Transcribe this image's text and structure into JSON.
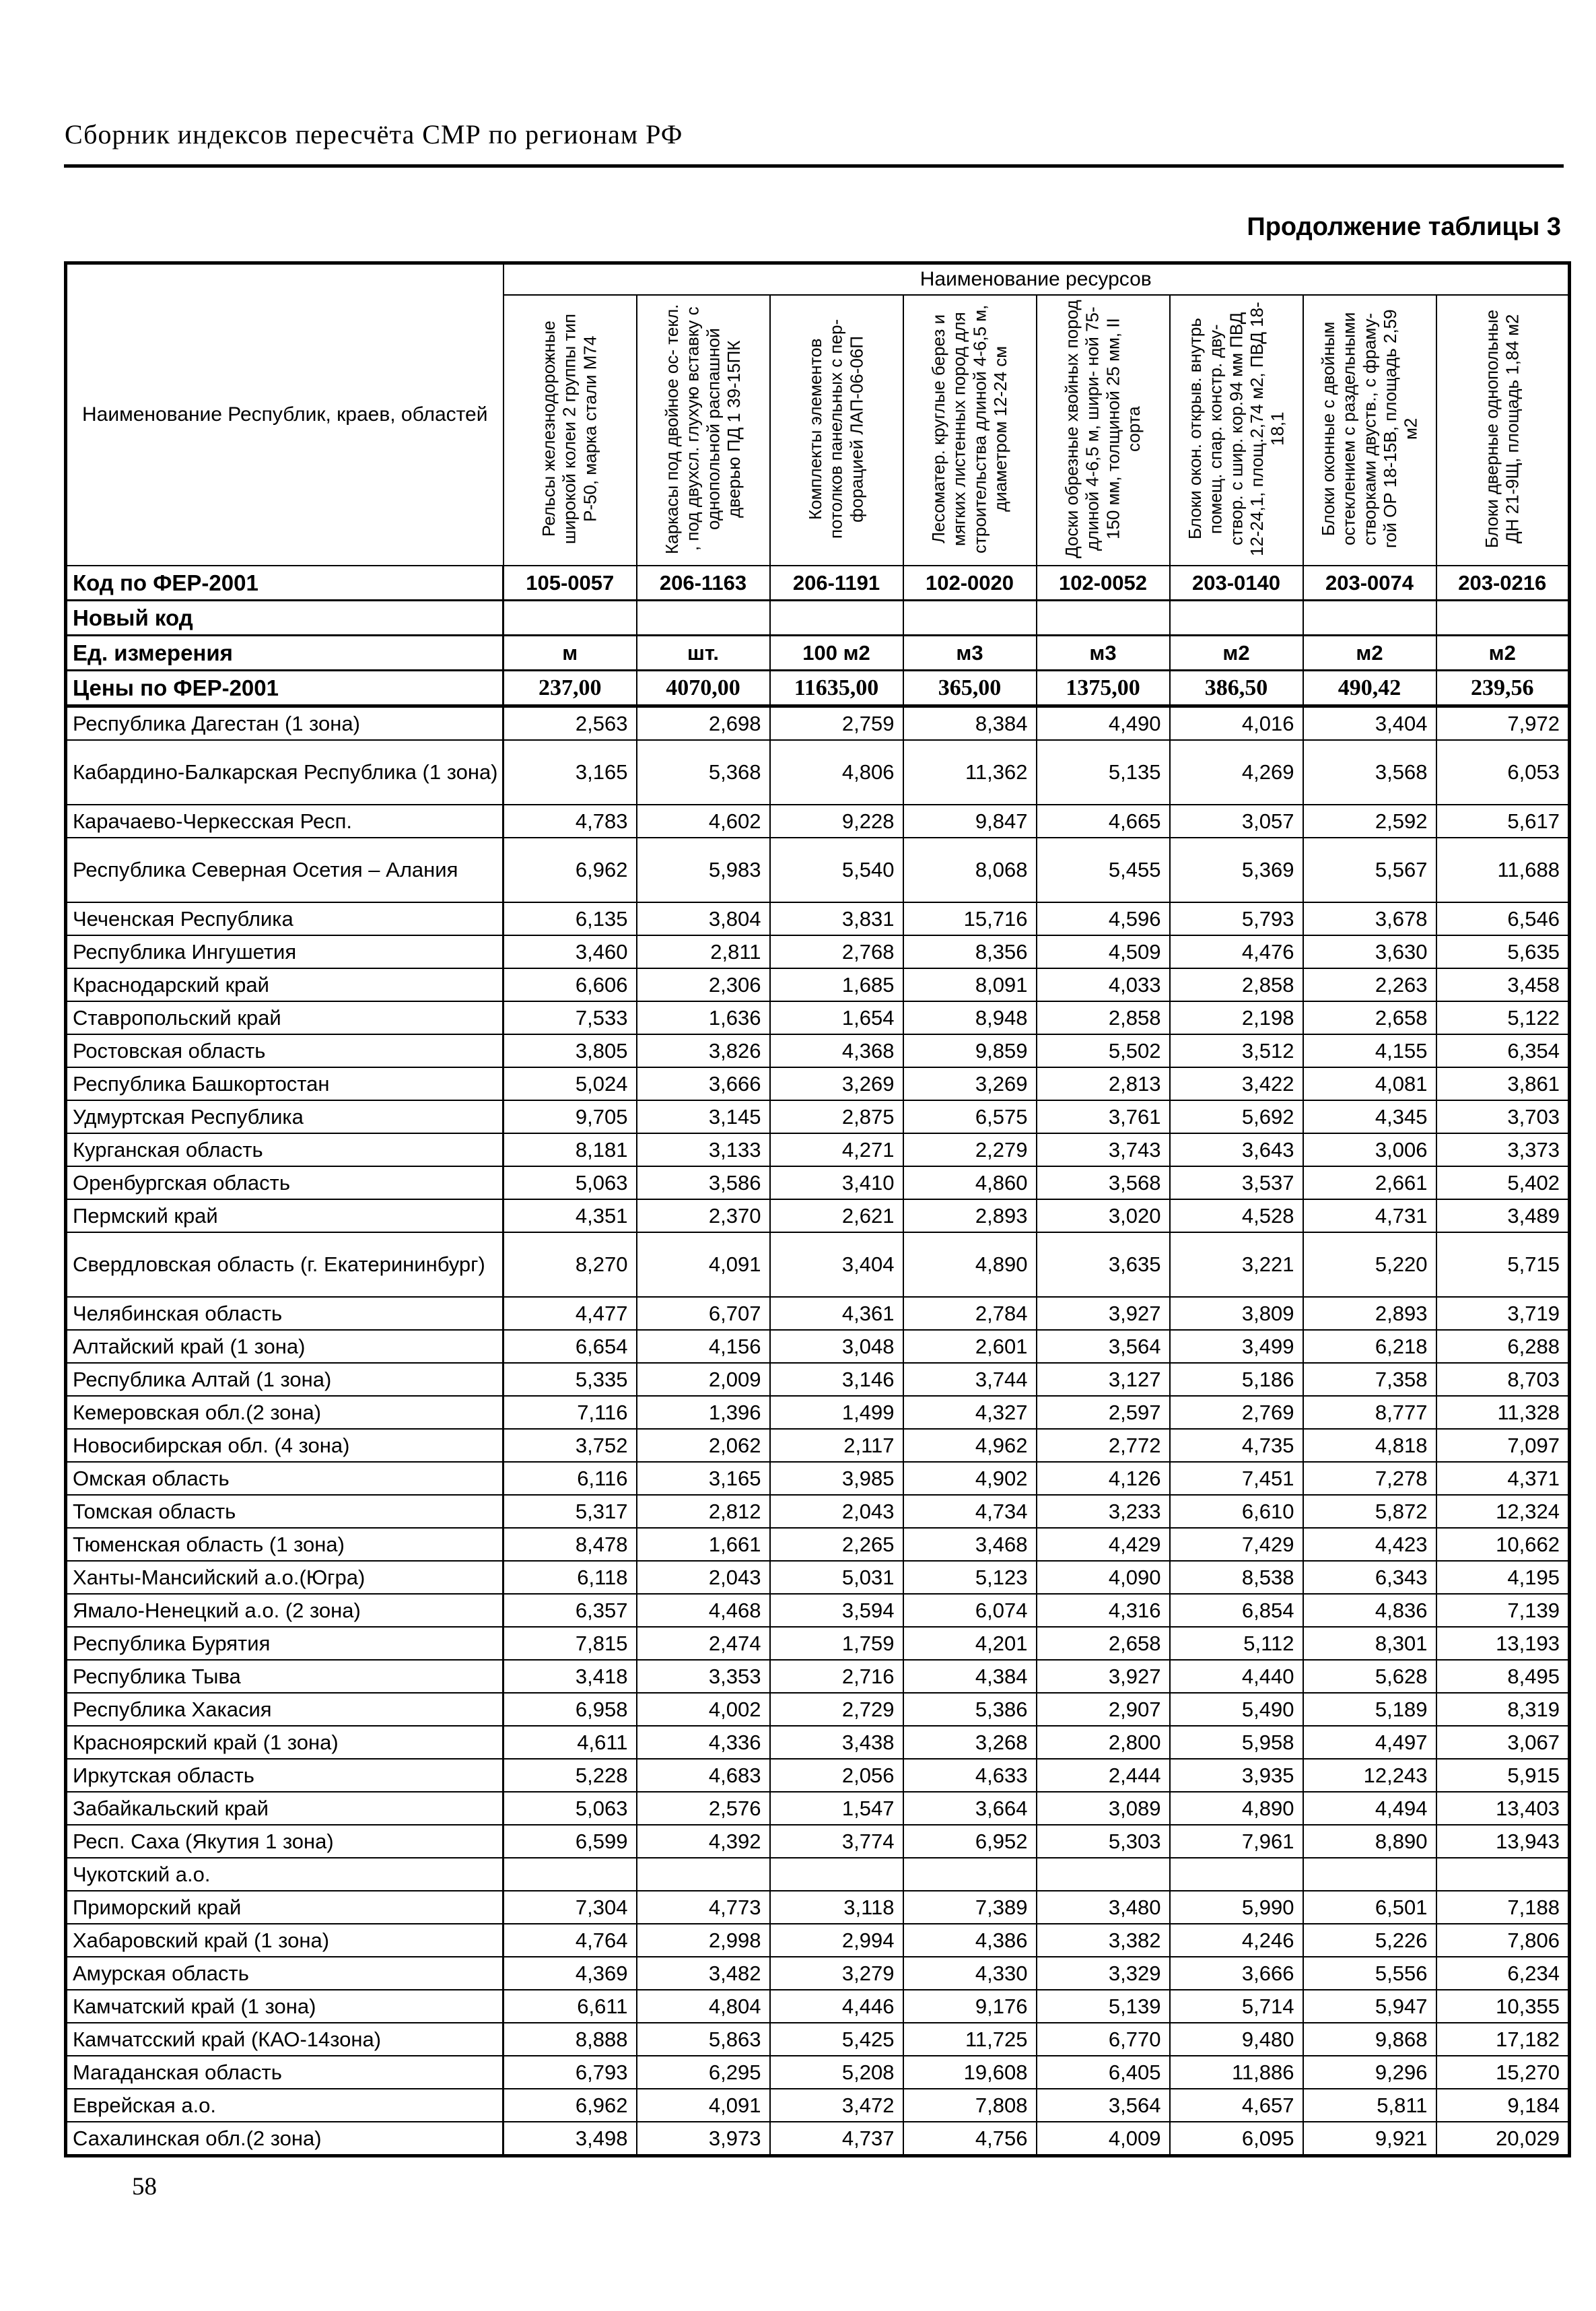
{
  "page": {
    "header_title": "Сборник индексов пересчёта СМР  по регионам РФ",
    "table_caption": "Продолжение таблицы 3",
    "page_number": "58"
  },
  "table": {
    "region_header": "Наименование Республик, краев, областей",
    "resources_header": "Наименование ресурсов",
    "columns": [
      "Рельсы железнодорожные широкой колеи 2 группы тип Р-50, марка стали М74",
      "Каркасы под двойное ос- текл. , под двухсл. глухую вставку с однопольной распашной дверью ПД 1 39-15ПК",
      "Комплекты элементов потолков панельных с пер- форацией ЛАП-06-06П",
      "Лесоматер. круглые берез и мягких листенных пород для строительства длиной 4-6,5 м, диаметром 12-24 см",
      "Доски обрезные хвойных пород длиной 4-6,5 м, шири- ной 75-150 мм, толщиной 25 мм, II сорта",
      "Блоки окон. открыв. внутрь помещ. спар. констр. дву- створ. с шир. кор.94 мм ПВД 12-24,1, площ.2,74 м2, ПВД 18-18,1",
      "Блоки оконные с двойным остеклением с раздельными створками двуств., с фраму- гой ОР 18-15В, площадь 2,59 м2",
      "Блоки дверные однопольные ДН 21-9Щ, площадь 1,84 м2"
    ],
    "info_rows": [
      {
        "kind": "codes-row",
        "label": "Код по ФЕР-2001",
        "values": [
          "105-0057",
          "206-1163",
          "206-1191",
          "102-0020",
          "102-0052",
          "203-0140",
          "203-0074",
          "203-0216"
        ]
      },
      {
        "kind": "newcode-row",
        "label": "Новый код",
        "values": [
          "",
          "",
          "",
          "",
          "",
          "",
          "",
          ""
        ]
      },
      {
        "kind": "units-row",
        "label": "Ед. измерения",
        "values": [
          "м",
          "шт.",
          "100 м2",
          "м3",
          "м3",
          "м2",
          "м2",
          "м2"
        ]
      },
      {
        "kind": "prices-row",
        "label": "Цены по ФЕР-2001",
        "values": [
          "237,00",
          "4070,00",
          "11635,00",
          "365,00",
          "1375,00",
          "386,50",
          "490,42",
          "239,56"
        ]
      }
    ],
    "rows": [
      {
        "name": "Республика Дагестан (1 зона)",
        "values": [
          "2,563",
          "2,698",
          "2,759",
          "8,384",
          "4,490",
          "4,016",
          "3,404",
          "7,972"
        ]
      },
      {
        "name": "Кабардино-Балкарская Республика (1 зона)",
        "tall": true,
        "values": [
          "3,165",
          "5,368",
          "4,806",
          "11,362",
          "5,135",
          "4,269",
          "3,568",
          "6,053"
        ]
      },
      {
        "name": "Карачаево-Черкесская Респ.",
        "values": [
          "4,783",
          "4,602",
          "9,228",
          "9,847",
          "4,665",
          "3,057",
          "2,592",
          "5,617"
        ]
      },
      {
        "name": "Республика Северная Осетия – Алания",
        "tall": true,
        "values": [
          "6,962",
          "5,983",
          "5,540",
          "8,068",
          "5,455",
          "5,369",
          "5,567",
          "11,688"
        ]
      },
      {
        "name": "Чеченская Республика",
        "values": [
          "6,135",
          "3,804",
          "3,831",
          "15,716",
          "4,596",
          "5,793",
          "3,678",
          "6,546"
        ]
      },
      {
        "name": "Республика Ингушетия",
        "values": [
          "3,460",
          "2,811",
          "2,768",
          "8,356",
          "4,509",
          "4,476",
          "3,630",
          "5,635"
        ]
      },
      {
        "name": "Краснодарский край",
        "values": [
          "6,606",
          "2,306",
          "1,685",
          "8,091",
          "4,033",
          "2,858",
          "2,263",
          "3,458"
        ]
      },
      {
        "name": "Ставропольский край",
        "values": [
          "7,533",
          "1,636",
          "1,654",
          "8,948",
          "2,858",
          "2,198",
          "2,658",
          "5,122"
        ]
      },
      {
        "name": "Ростовская область",
        "values": [
          "3,805",
          "3,826",
          "4,368",
          "9,859",
          "5,502",
          "3,512",
          "4,155",
          "6,354"
        ]
      },
      {
        "name": "Республика Башкортостан",
        "values": [
          "5,024",
          "3,666",
          "3,269",
          "3,269",
          "2,813",
          "3,422",
          "4,081",
          "3,861"
        ]
      },
      {
        "name": "Удмуртская Республика",
        "values": [
          "9,705",
          "3,145",
          "2,875",
          "6,575",
          "3,761",
          "5,692",
          "4,345",
          "3,703"
        ]
      },
      {
        "name": "Курганская область",
        "values": [
          "8,181",
          "3,133",
          "4,271",
          "2,279",
          "3,743",
          "3,643",
          "3,006",
          "3,373"
        ]
      },
      {
        "name": "Оренбургская область",
        "values": [
          "5,063",
          "3,586",
          "3,410",
          "4,860",
          "3,568",
          "3,537",
          "2,661",
          "5,402"
        ]
      },
      {
        "name": "Пермский край",
        "values": [
          "4,351",
          "2,370",
          "2,621",
          "2,893",
          "3,020",
          "4,528",
          "4,731",
          "3,489"
        ]
      },
      {
        "name": "Свердловская область (г. Екатерининбург)",
        "tall": true,
        "values": [
          "8,270",
          "4,091",
          "3,404",
          "4,890",
          "3,635",
          "3,221",
          "5,220",
          "5,715"
        ]
      },
      {
        "name": "Челябинская область",
        "values": [
          "4,477",
          "6,707",
          "4,361",
          "2,784",
          "3,927",
          "3,809",
          "2,893",
          "3,719"
        ]
      },
      {
        "name": "Алтайский край (1 зона)",
        "values": [
          "6,654",
          "4,156",
          "3,048",
          "2,601",
          "3,564",
          "3,499",
          "6,218",
          "6,288"
        ]
      },
      {
        "name": "Республика Алтай (1 зона)",
        "values": [
          "5,335",
          "2,009",
          "3,146",
          "3,744",
          "3,127",
          "5,186",
          "7,358",
          "8,703"
        ]
      },
      {
        "name": "Кемеровская обл.(2 зона)",
        "values": [
          "7,116",
          "1,396",
          "1,499",
          "4,327",
          "2,597",
          "2,769",
          "8,777",
          "11,328"
        ]
      },
      {
        "name": "Новосибирская обл. (4 зона)",
        "values": [
          "3,752",
          "2,062",
          "2,117",
          "4,962",
          "2,772",
          "4,735",
          "4,818",
          "7,097"
        ]
      },
      {
        "name": "Омская область",
        "values": [
          "6,116",
          "3,165",
          "3,985",
          "4,902",
          "4,126",
          "7,451",
          "7,278",
          "4,371"
        ]
      },
      {
        "name": "Томская область",
        "values": [
          "5,317",
          "2,812",
          "2,043",
          "4,734",
          "3,233",
          "6,610",
          "5,872",
          "12,324"
        ]
      },
      {
        "name": "Тюменская область (1 зона)",
        "values": [
          "8,478",
          "1,661",
          "2,265",
          "3,468",
          "4,429",
          "7,429",
          "4,423",
          "10,662"
        ]
      },
      {
        "name": "Ханты-Мансийский а.о.(Югра)",
        "values": [
          "6,118",
          "2,043",
          "5,031",
          "5,123",
          "4,090",
          "8,538",
          "6,343",
          "4,195"
        ]
      },
      {
        "name": "Ямало-Ненецкий а.о. (2 зона)",
        "values": [
          "6,357",
          "4,468",
          "3,594",
          "6,074",
          "4,316",
          "6,854",
          "4,836",
          "7,139"
        ]
      },
      {
        "name": "Республика Бурятия",
        "values": [
          "7,815",
          "2,474",
          "1,759",
          "4,201",
          "2,658",
          "5,112",
          "8,301",
          "13,193"
        ]
      },
      {
        "name": "Республика Тыва",
        "values": [
          "3,418",
          "3,353",
          "2,716",
          "4,384",
          "3,927",
          "4,440",
          "5,628",
          "8,495"
        ]
      },
      {
        "name": "Республика Хакасия",
        "values": [
          "6,958",
          "4,002",
          "2,729",
          "5,386",
          "2,907",
          "5,490",
          "5,189",
          "8,319"
        ]
      },
      {
        "name": "Красноярский край (1 зона)",
        "values": [
          "4,611",
          "4,336",
          "3,438",
          "3,268",
          "2,800",
          "5,958",
          "4,497",
          "3,067"
        ]
      },
      {
        "name": "Иркутская область",
        "values": [
          "5,228",
          "4,683",
          "2,056",
          "4,633",
          "2,444",
          "3,935",
          "12,243",
          "5,915"
        ]
      },
      {
        "name": "Забайкальский край",
        "values": [
          "5,063",
          "2,576",
          "1,547",
          "3,664",
          "3,089",
          "4,890",
          "4,494",
          "13,403"
        ]
      },
      {
        "name": "Респ. Саха (Якутия 1 зона)",
        "values": [
          "6,599",
          "4,392",
          "3,774",
          "6,952",
          "5,303",
          "7,961",
          "8,890",
          "13,943"
        ]
      },
      {
        "name": "Чукотский а.о.",
        "values": [
          "",
          "",
          "",
          "",
          "",
          "",
          "",
          ""
        ]
      },
      {
        "name": "Приморский край",
        "values": [
          "7,304",
          "4,773",
          "3,118",
          "7,389",
          "3,480",
          "5,990",
          "6,501",
          "7,188"
        ]
      },
      {
        "name": "Хабаровский край (1 зона)",
        "values": [
          "4,764",
          "2,998",
          "2,994",
          "4,386",
          "3,382",
          "4,246",
          "5,226",
          "7,806"
        ]
      },
      {
        "name": "Амурская область",
        "values": [
          "4,369",
          "3,482",
          "3,279",
          "4,330",
          "3,329",
          "3,666",
          "5,556",
          "6,234"
        ]
      },
      {
        "name": "Камчатский край (1 зона)",
        "values": [
          "6,611",
          "4,804",
          "4,446",
          "9,176",
          "5,139",
          "5,714",
          "5,947",
          "10,355"
        ]
      },
      {
        "name": "Камчатсский край (КАО-14зона)",
        "values": [
          "8,888",
          "5,863",
          "5,425",
          "11,725",
          "6,770",
          "9,480",
          "9,868",
          "17,182"
        ]
      },
      {
        "name": "Магаданская область",
        "values": [
          "6,793",
          "6,295",
          "5,208",
          "19,608",
          "6,405",
          "11,886",
          "9,296",
          "15,270"
        ]
      },
      {
        "name": "Еврейская а.о.",
        "values": [
          "6,962",
          "4,091",
          "3,472",
          "7,808",
          "3,564",
          "4,657",
          "5,811",
          "9,184"
        ]
      },
      {
        "name": "Сахалинская обл.(2 зона)",
        "values": [
          "3,498",
          "3,973",
          "4,737",
          "4,756",
          "4,009",
          "6,095",
          "9,921",
          "20,029"
        ]
      }
    ]
  }
}
